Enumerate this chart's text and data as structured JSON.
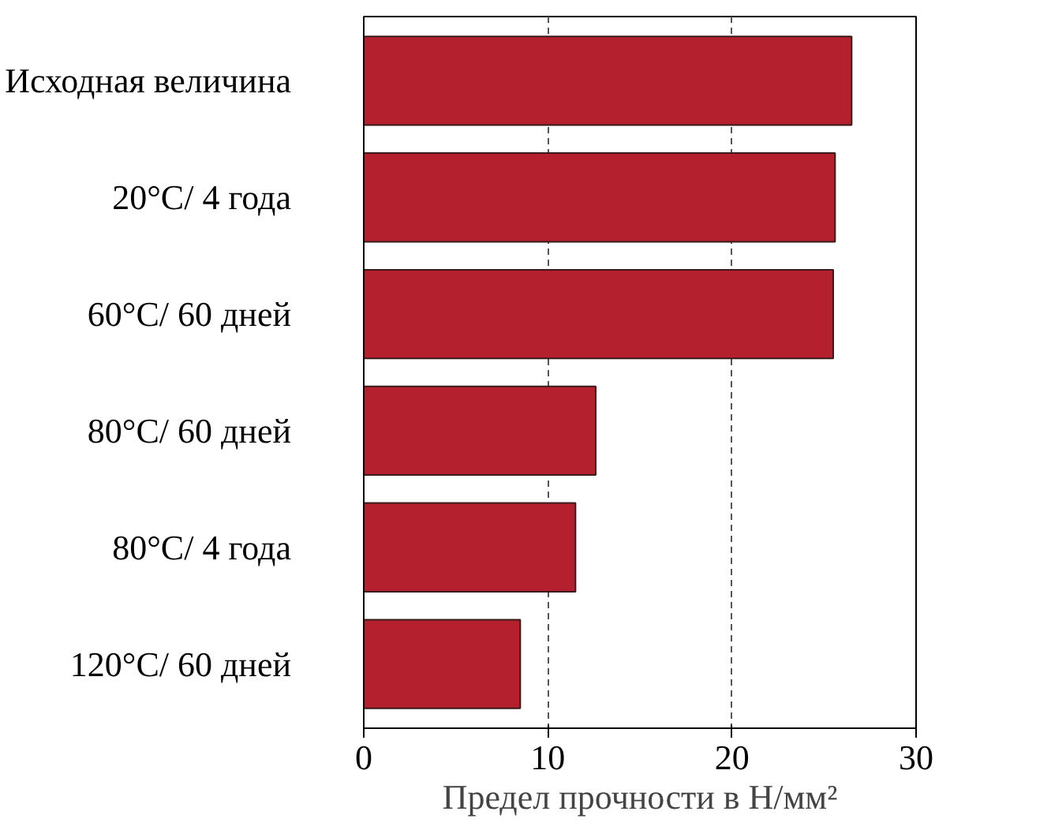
{
  "chart_data": {
    "type": "bar",
    "orientation": "horizontal",
    "categories": [
      "Исходная величина",
      "20°C/ 4 года",
      "60°C/ 60 дней",
      "80°C/ 60 дней",
      "80°C/ 4 года",
      "120°C/ 60 дней"
    ],
    "values": [
      26.5,
      25.6,
      25.5,
      12.6,
      11.5,
      8.5
    ],
    "color": "#b5202e",
    "xlim": [
      0,
      30
    ],
    "xticks": [
      0,
      10,
      20,
      30
    ],
    "xlabel": "Предел прочности в Н/мм²",
    "grid": "x"
  }
}
